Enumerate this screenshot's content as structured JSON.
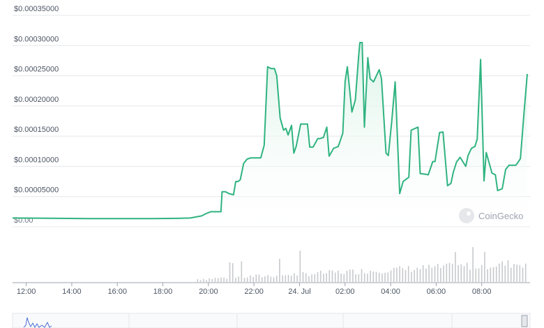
{
  "colors": {
    "line": "#2fb380",
    "area_top": "#d9f2e6",
    "volume": "#c7c9cc",
    "navigator_line": "#4a6fd6",
    "grid": "#e5e7eb"
  },
  "watermark": {
    "text": "CoinGecko",
    "icon": "coingecko-logo-icon"
  },
  "chart_data": {
    "type": "line",
    "title": "",
    "xlabel": "",
    "ylabel": "",
    "grid": true,
    "ylim": [
      0,
      0.00035
    ],
    "y_ticks": [
      {
        "value": 0,
        "label": "$0.00"
      },
      {
        "value": 5e-05,
        "label": "$0.00005000"
      },
      {
        "value": 0.0001,
        "label": "$0.00010000"
      },
      {
        "value": 0.00015,
        "label": "$0.00015000"
      },
      {
        "value": 0.0002,
        "label": "$0.00020000"
      },
      {
        "value": 0.00025,
        "label": "$0.00025000"
      },
      {
        "value": 0.0003,
        "label": "$0.00030000"
      },
      {
        "value": 0.00035,
        "label": "$0.00035000"
      }
    ],
    "xlim": [
      11.4,
      34.0
    ],
    "x_ticks": [
      {
        "value": 12,
        "label": "12:00"
      },
      {
        "value": 14,
        "label": "14:00"
      },
      {
        "value": 16,
        "label": "16:00"
      },
      {
        "value": 18,
        "label": "18:00"
      },
      {
        "value": 20,
        "label": "20:00"
      },
      {
        "value": 22,
        "label": "22:00"
      },
      {
        "value": 24,
        "label": "24. Jul"
      },
      {
        "value": 26,
        "label": "02:00"
      },
      {
        "value": 28,
        "label": "04:00"
      },
      {
        "value": 30,
        "label": "06:00"
      },
      {
        "value": 32,
        "label": "08:00"
      }
    ],
    "series": [
      {
        "x": [
          11.4,
          13.5,
          15.0,
          17.5,
          18.6,
          19.2,
          19.7,
          19.9,
          20.1,
          20.25,
          20.4,
          20.55,
          20.6,
          20.75,
          20.9,
          21.1,
          21.2,
          21.3,
          21.4,
          21.55,
          21.7,
          21.85,
          22.0,
          22.15,
          22.3,
          22.45,
          22.6,
          22.75,
          22.9,
          23.0,
          23.15,
          23.3,
          23.4,
          23.5,
          23.65,
          23.75,
          23.85,
          24.05,
          24.35,
          24.45,
          24.6,
          24.8,
          24.9,
          25.05,
          25.2,
          25.3,
          25.5,
          25.7,
          25.9,
          26.0,
          26.1,
          26.3,
          26.45,
          26.6,
          26.65,
          26.75,
          26.85,
          27.0,
          27.1,
          27.25,
          27.5,
          27.6,
          27.8,
          27.9,
          28.05,
          28.2,
          28.4,
          28.55,
          28.8,
          28.9,
          29.2,
          29.3,
          29.55,
          29.65,
          29.85,
          29.95,
          30.15,
          30.3,
          30.5,
          30.65,
          30.75,
          30.9,
          30.95,
          31.05,
          31.3,
          31.4,
          31.55,
          31.7,
          31.8,
          31.95,
          32.1,
          32.2,
          32.45,
          32.6,
          32.7,
          32.9,
          33.05,
          33.2,
          33.35,
          33.5,
          33.6,
          33.7,
          33.85,
          34.0
        ],
        "values": [
          1.45e-05,
          1.4e-05,
          1.35e-05,
          1.35e-05,
          1.4e-05,
          1.45e-05,
          1.8e-05,
          2.2e-05,
          2.5e-05,
          2.5e-05,
          2.5e-05,
          2.5e-05,
          5.8e-05,
          5.8e-05,
          5.5e-05,
          5.3e-05,
          7.5e-05,
          7.5e-05,
          7.8e-05,
          0.000105,
          0.000112,
          0.000114,
          0.000114,
          0.000114,
          0.000114,
          0.000135,
          0.000265,
          0.000262,
          0.000262,
          0.00025,
          0.00018,
          0.00016,
          0.000163,
          0.000152,
          0.000168,
          0.000122,
          0.000133,
          0.00017,
          0.00017,
          0.000132,
          0.000132,
          0.000146,
          0.000146,
          0.000148,
          0.000165,
          0.000117,
          0.00013,
          0.000133,
          0.000155,
          0.00024,
          0.000265,
          0.00019,
          0.00021,
          0.000285,
          0.000305,
          0.000305,
          0.000165,
          0.00028,
          0.000245,
          0.00024,
          0.00026,
          0.000245,
          0.000122,
          0.000118,
          0.000175,
          0.00024,
          5.5e-05,
          7.5e-05,
          8.2e-05,
          0.00016,
          0.000165,
          8.8e-05,
          8.7e-05,
          8.6e-05,
          0.000108,
          0.000108,
          0.000156,
          0.000157,
          6.8e-05,
          7.2e-05,
          9e-05,
          0.000108,
          0.00011,
          0.000115,
          0.0001,
          0.000118,
          0.00013,
          0.000133,
          0.000145,
          0.000277,
          7.6e-05,
          0.000123,
          8.9e-05,
          8.6e-05,
          6e-05,
          6.3e-05,
          9.5e-05,
          0.000102,
          0.000102,
          0.000102,
          0.000107,
          0.000113,
          0.000185,
          0.000253
        ]
      }
    ]
  }
}
